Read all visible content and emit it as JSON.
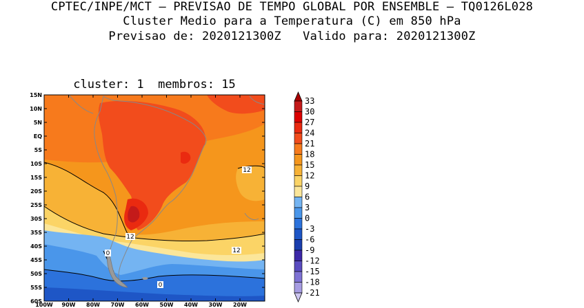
{
  "header": {
    "line1": "CPTEC/INPE/MCT — PREVISAO DE TEMPO GLOBAL POR ENSEMBLE — TQ0126L028",
    "line2": "Cluster Medio para a Temperatura (C) em 850 hPa",
    "line3": "Previsao de: 2020121300Z   Valido para: 2020121300Z"
  },
  "panel": {
    "title": "cluster: 1  membros: 15"
  },
  "axes": {
    "lat_labels": [
      "15N",
      "10N",
      "5N",
      "EQ",
      "5S",
      "10S",
      "15S",
      "20S",
      "25S",
      "30S",
      "35S",
      "40S",
      "45S",
      "50S",
      "55S",
      "60S"
    ],
    "lon_labels": [
      "100W",
      "90W",
      "80W",
      "70W",
      "60W",
      "50W",
      "40W",
      "30W",
      "20W"
    ]
  },
  "contour_labels": [
    "12",
    "12",
    "12",
    "0",
    "0"
  ],
  "colorbar": {
    "levels": [
      "33",
      "30",
      "27",
      "24",
      "21",
      "18",
      "15",
      "12",
      "9",
      "6",
      "3",
      "0",
      "-3",
      "-6",
      "-9",
      "-12",
      "-15",
      "-18",
      "-21"
    ],
    "colors": [
      "#a80000",
      "#c41a1a",
      "#dc0000",
      "#ea2a10",
      "#f24c1c",
      "#f77a1c",
      "#f5961c",
      "#f7b236",
      "#fbd466",
      "#fbe69a",
      "#74b4f2",
      "#4a96ea",
      "#2c72dc",
      "#1e56c6",
      "#1a3eae",
      "#3c28a8",
      "#5a4cc0",
      "#7e72d4",
      "#a69ce2",
      "#cdc6f0"
    ]
  }
}
